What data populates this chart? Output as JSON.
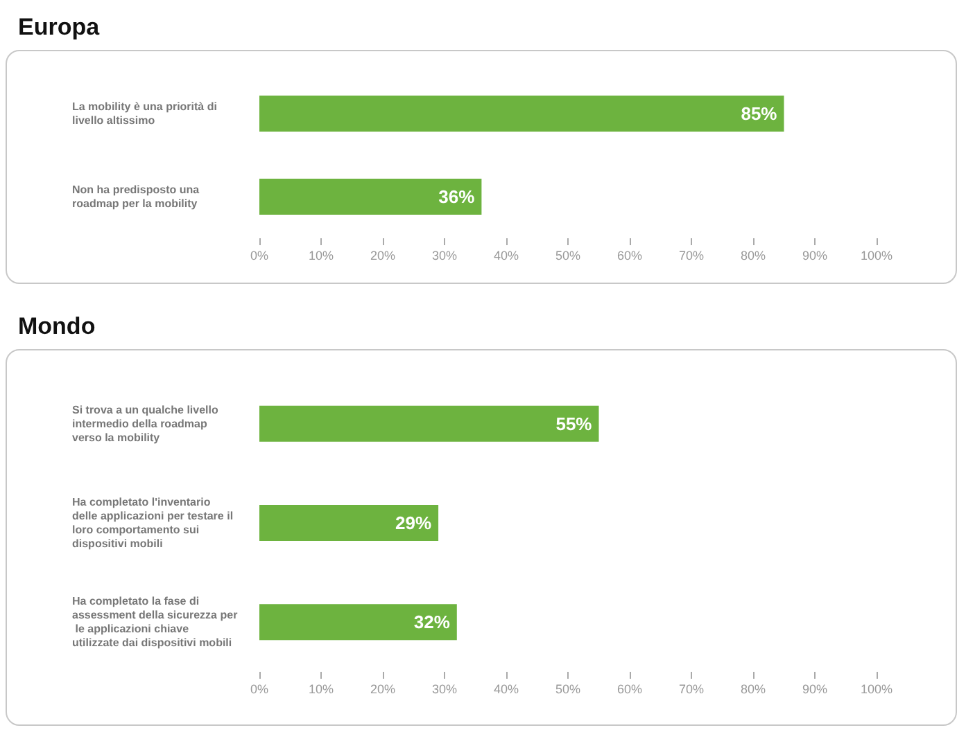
{
  "chart_data": [
    {
      "type": "bar",
      "orientation": "horizontal",
      "title": "Europa",
      "categories": [
        "La mobility è una priorità di livello altissimo",
        "Non ha predisposto una roadmap per la mobility"
      ],
      "series": [
        {
          "color": "#6db33f",
          "values": [
            85,
            36
          ]
        }
      ],
      "xlim": [
        0,
        100
      ],
      "xticks": [
        {
          "value": 0,
          "label": "0%"
        },
        {
          "value": 10,
          "label": "10%"
        },
        {
          "value": 20,
          "label": "20%"
        },
        {
          "value": 30,
          "label": "30%"
        },
        {
          "value": 40,
          "label": "40%"
        },
        {
          "value": 50,
          "label": "50%"
        },
        {
          "value": 60,
          "label": "60%"
        },
        {
          "value": 70,
          "label": "70%"
        },
        {
          "value": 80,
          "label": "80%"
        },
        {
          "value": 90,
          "label": "90%"
        },
        {
          "value": 100,
          "label": "100%"
        }
      ],
      "value_labels": [
        "85%",
        "36%"
      ],
      "grid": false
    },
    {
      "type": "bar",
      "orientation": "horizontal",
      "title": "Mondo",
      "categories": [
        "Si trova a un qualche livello intermedio della roadmap verso la mobility",
        "Ha completato l'inventario delle applicazioni per testare il loro comportamento sui dispositivi mobili",
        "Ha completato la fase di assessment della sicurezza per le applicazioni chiave utilizzate dai dispositivi mobili"
      ],
      "series": [
        {
          "color": "#6db33f",
          "values": [
            55,
            29,
            32
          ]
        }
      ],
      "xlim": [
        0,
        100
      ],
      "xticks": [
        {
          "value": 0,
          "label": "0%"
        },
        {
          "value": 10,
          "label": "10%"
        },
        {
          "value": 20,
          "label": "20%"
        },
        {
          "value": 30,
          "label": "30%"
        },
        {
          "value": 40,
          "label": "40%"
        },
        {
          "value": 50,
          "label": "50%"
        },
        {
          "value": 60,
          "label": "60%"
        },
        {
          "value": 70,
          "label": "70%"
        },
        {
          "value": 80,
          "label": "80%"
        },
        {
          "value": 90,
          "label": "90%"
        },
        {
          "value": 100,
          "label": "100%"
        }
      ],
      "value_labels": [
        "55%",
        "29%",
        "32%"
      ],
      "grid": false
    }
  ]
}
